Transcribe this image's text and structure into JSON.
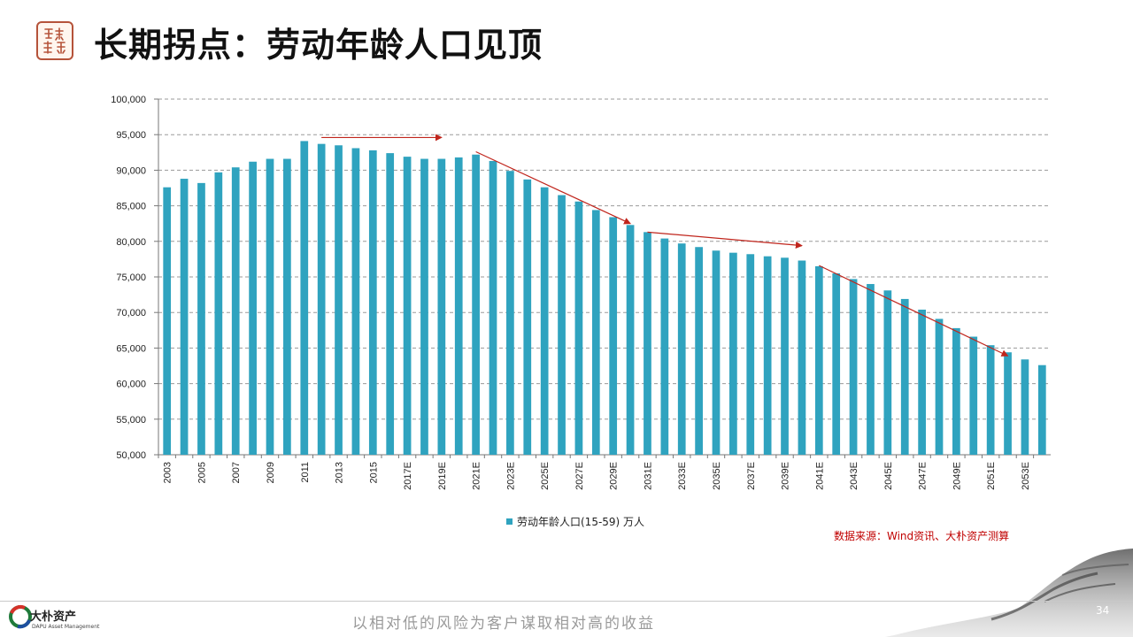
{
  "slide": {
    "title": "长期拐点：劳动年龄人口见顶",
    "source_note": "数据来源：Wind资讯、大朴资产测算",
    "slogan": "以相对低的风险为客户谋取相对高的收益",
    "page_number": "34",
    "logo_name": "大朴资产",
    "logo_subtitle": "DAPU Asset Management"
  },
  "colors": {
    "bar": "#2fa3bf",
    "arrow": "#c0251c",
    "grid": "#9a9a9a",
    "source_text": "#c00000"
  },
  "icons": {
    "seal": "red-seal-stamp-icon",
    "logo": "dapu-ring-logo-icon",
    "decoration": "ink-landscape-decoration"
  },
  "chart_data": {
    "type": "bar",
    "title": "",
    "xlabel": "",
    "ylabel": "",
    "ylim": [
      50000,
      100000
    ],
    "y_ticks": [
      "50,000",
      "55,000",
      "60,000",
      "65,000",
      "70,000",
      "75,000",
      "80,000",
      "85,000",
      "90,000",
      "95,000",
      "100,000"
    ],
    "grid": true,
    "legend_position": "bottom",
    "categories": [
      "2003",
      "2004",
      "2005",
      "2006",
      "2007",
      "2008",
      "2009",
      "2010",
      "2011",
      "2012",
      "2013",
      "2014",
      "2015",
      "2016",
      "2017E",
      "2018E",
      "2019E",
      "2020E",
      "2021E",
      "2022E",
      "2023E",
      "2024E",
      "2025E",
      "2026E",
      "2027E",
      "2028E",
      "2029E",
      "2030E",
      "2031E",
      "2032E",
      "2033E",
      "2034E",
      "2035E",
      "2036E",
      "2037E",
      "2038E",
      "2039E",
      "2040E",
      "2041E",
      "2042E",
      "2043E",
      "2044E",
      "2045E",
      "2046E",
      "2047E",
      "2048E",
      "2049E",
      "2050E",
      "2051E",
      "2052E",
      "2053E",
      "2054E"
    ],
    "shown_tick_labels": [
      "2003",
      "2005",
      "2007",
      "2009",
      "2011",
      "2013",
      "2015",
      "2017E",
      "2019E",
      "2021E",
      "2023E",
      "2025E",
      "2027E",
      "2029E",
      "2031E",
      "2033E",
      "2035E",
      "2037E",
      "2039E",
      "2041E",
      "2043E",
      "2045E",
      "2047E",
      "2049E",
      "2051E",
      "2053E"
    ],
    "series": [
      {
        "name": "劳动年龄人口(15-59)  万人",
        "values": [
          87600,
          88800,
          88200,
          89700,
          90400,
          91200,
          91600,
          91600,
          94100,
          93700,
          93500,
          93100,
          92800,
          92400,
          91900,
          91600,
          91600,
          91800,
          92200,
          91300,
          89900,
          88700,
          87600,
          86500,
          85600,
          84400,
          83400,
          82300,
          81300,
          80400,
          79700,
          79200,
          78700,
          78400,
          78200,
          77900,
          77700,
          77300,
          76500,
          75500,
          74700,
          74000,
          73100,
          71900,
          70400,
          69100,
          67800,
          66600,
          65400,
          64400,
          63400,
          62600
        ]
      }
    ],
    "trend_arrows": [
      {
        "from": {
          "x": "2012",
          "y": 94600
        },
        "to": {
          "x": "2019E",
          "y": 94600
        }
      },
      {
        "from": {
          "x": "2021E",
          "y": 92600
        },
        "to": {
          "x": "2030E",
          "y": 82500
        }
      },
      {
        "from": {
          "x": "2031E",
          "y": 81300
        },
        "to": {
          "x": "2040E",
          "y": 79400
        }
      },
      {
        "from": {
          "x": "2041E",
          "y": 76600
        },
        "to": {
          "x": "2052E",
          "y": 63900
        }
      }
    ]
  }
}
